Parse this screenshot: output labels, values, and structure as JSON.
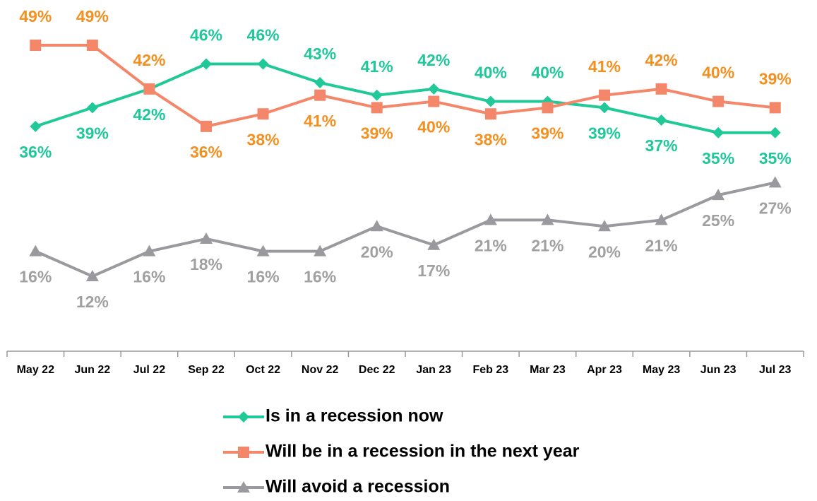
{
  "chart_data": {
    "type": "line",
    "categories": [
      "May 22",
      "Jun 22",
      "Jul 22",
      "Sep 22",
      "Oct 22",
      "Nov 22",
      "Dec 22",
      "Jan 23",
      "Feb 23",
      "Mar 23",
      "Apr 23",
      "May 23",
      "Jun 23",
      "Jul 23"
    ],
    "series": [
      {
        "name": "Is in a recession now",
        "color": "#20c997",
        "label_color": "#1fc79a",
        "marker": "diamond",
        "values": [
          36,
          39,
          42,
          46,
          46,
          43,
          41,
          42,
          40,
          40,
          39,
          37,
          35,
          35
        ],
        "value_labels": [
          "36%",
          "39%",
          "42%",
          "46%",
          "46%",
          "43%",
          "41%",
          "42%",
          "40%",
          "40%",
          "39%",
          "37%",
          "35%",
          "35%"
        ]
      },
      {
        "name": "Will be in a recession in the next year",
        "color": "#f4876a",
        "label_color": "#f39020",
        "marker": "square",
        "values": [
          49,
          49,
          42,
          36,
          38,
          41,
          39,
          40,
          38,
          39,
          41,
          42,
          40,
          39
        ],
        "value_labels": [
          "49%",
          "49%",
          "42%",
          "36%",
          "38%",
          "41%",
          "39%",
          "40%",
          "38%",
          "39%",
          "41%",
          "42%",
          "40%",
          "39%"
        ]
      },
      {
        "name": "Will avoid a recession",
        "color": "#9a9a9e",
        "label_color": "#a0a0a0",
        "marker": "triangle",
        "values": [
          16,
          12,
          16,
          18,
          16,
          16,
          20,
          17,
          21,
          21,
          20,
          21,
          25,
          27
        ],
        "value_labels": [
          "16%",
          "12%",
          "16%",
          "18%",
          "16%",
          "16%",
          "20%",
          "17%",
          "21%",
          "21%",
          "20%",
          "21%",
          "25%",
          "27%"
        ]
      }
    ],
    "ylim": [
      0,
      55
    ]
  }
}
